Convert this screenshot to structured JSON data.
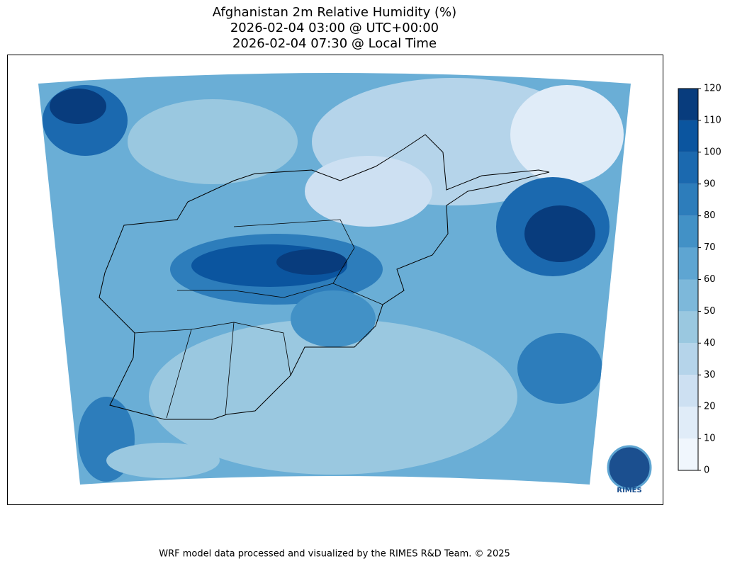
{
  "title": [
    "Afghanistan 2m Relative Humidity (%)",
    "2026-02-04 03:00 @ UTC+00:00",
    "2026-02-04 07:30 @ Local Time"
  ],
  "colorbar": {
    "lim": [
      0,
      120
    ],
    "ticks": [
      0,
      10,
      20,
      30,
      40,
      50,
      60,
      70,
      80,
      90,
      100,
      110,
      120
    ],
    "colors": [
      "#f0f6fd",
      "#e0ecf8",
      "#cde0f2",
      "#b5d4ea",
      "#9ac8e0",
      "#7db8da",
      "#5ea5d2",
      "#4291c6",
      "#2d7dbb",
      "#1b69af",
      "#0b559f",
      "#083c7d"
    ]
  },
  "logo": {
    "label": "RIMES"
  },
  "footer": "WRF model data processed and visualized by the RIMES R&D Team. © 2025"
}
